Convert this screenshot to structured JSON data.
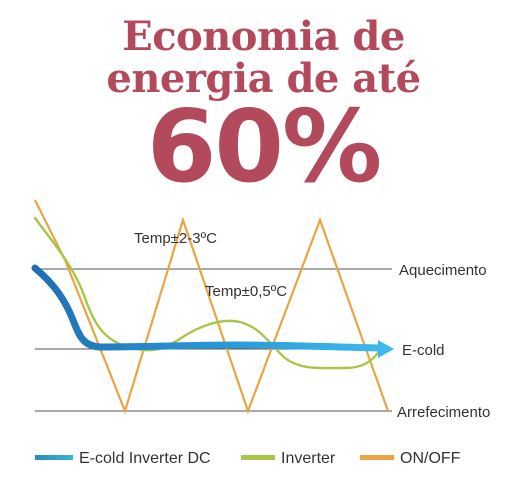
{
  "headline": {
    "line1": "Economia de",
    "line2": "energia de até",
    "big": "60%"
  },
  "colors": {
    "headline": "#b34a5c",
    "ecold": "#1f74b8",
    "ecold_light": "#3cb8ea",
    "inverter": "#a9c548",
    "onoff": "#eaa443",
    "guide": "#444444"
  },
  "chart_data": {
    "type": "line",
    "title": "",
    "xlabel": "",
    "ylabel": "",
    "grid": false,
    "legend_position": "bottom",
    "reference_lines": [
      {
        "label": "Aquecimento"
      },
      {
        "label": "E-cold"
      },
      {
        "label": "Arrefecimento"
      }
    ],
    "annotations": [
      "Temp±2-3ºC",
      "Temp±0,5ºC"
    ],
    "series": [
      {
        "name": "E-cold Inverter DC",
        "color": "#1f74b8"
      },
      {
        "name": "Inverter",
        "color": "#a9c548"
      },
      {
        "name": "ON/OFF",
        "color": "#eaa443"
      }
    ]
  }
}
